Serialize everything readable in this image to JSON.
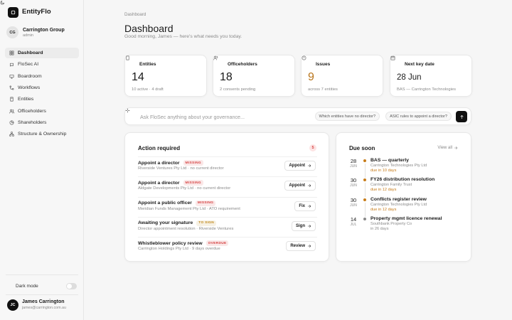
{
  "sidebar": {
    "brand": "EntityFlo",
    "org": {
      "initials": "CG",
      "name": "Carrington Group",
      "role": "admin"
    },
    "nav": [
      "Dashboard",
      "FloSec AI",
      "Boardroom",
      "Workflows",
      "Entities",
      "Officeholders",
      "Shareholders",
      "Structure & Ownership"
    ],
    "dark_mode": "Dark mode",
    "user": {
      "initials": "JC",
      "name": "James Carrington",
      "email": "james@carrington.com.au"
    }
  },
  "main": {
    "breadcrumb": "Dashboard",
    "title": "Dashboard",
    "greeting": "Good morning, James — here's what needs you today.",
    "stats": [
      {
        "label": "Entities",
        "value": "14",
        "note": "10 active · 4 draft",
        "color": "#1a1a1a"
      },
      {
        "label": "Officeholders",
        "value": "18",
        "note": "2 consents pending",
        "color": "#1a1a1a"
      },
      {
        "label": "Issues",
        "value": "9",
        "note": "across 7 entities",
        "color": "#b8741a"
      },
      {
        "label": "Next key date",
        "value": "28 Jun",
        "note": "BAS — Carrington Technologies",
        "color": "#1a1a1a"
      }
    ],
    "ask": {
      "placeholder": "Ask FloSec anything about your governance...",
      "suggestions": [
        "Which entities have no director?",
        "ASIC rules to appoint a director?"
      ]
    },
    "action_required": {
      "title": "Action required",
      "count": "5",
      "items": [
        {
          "title": "Appoint a director",
          "tag": "MISSING",
          "tag_color": "#d64545",
          "detail": "Riverside Ventures Pty Ltd · no current director",
          "action": "Appoint"
        },
        {
          "title": "Appoint a director",
          "tag": "MISSING",
          "tag_color": "#d64545",
          "detail": "Aldgate Developments Pty Ltd · no current director",
          "action": "Appoint"
        },
        {
          "title": "Appoint a public officer",
          "tag": "MISSING",
          "tag_color": "#d64545",
          "detail": "Meridian Funds Management Pty Ltd · ATO requirement",
          "action": "Fix"
        },
        {
          "title": "Awaiting your signature",
          "tag": "TO SIGN",
          "tag_color": "#c08a1e",
          "detail": "Director appointment resolution · Riverside Ventures",
          "action": "Sign"
        },
        {
          "title": "Whistleblower policy review",
          "tag": "OVERDUE",
          "tag_color": "#d64545",
          "detail": "Carrington Holdings Pty Ltd · 9 days overdue",
          "action": "Review"
        }
      ]
    },
    "due_soon": {
      "title": "Due soon",
      "view_all": "View all",
      "items": [
        {
          "day": "28",
          "month": "JUN",
          "title": "BAS — quarterly",
          "entity": "Carrington Technologies Pty Ltd",
          "due": "due in 10 days",
          "color": "#c77c1a"
        },
        {
          "day": "30",
          "month": "JUN",
          "title": "FY26 distribution resolution",
          "entity": "Carrington Family Trust",
          "due": "due in 12 days",
          "color": "#c77c1a"
        },
        {
          "day": "30",
          "month": "JUN",
          "title": "Conflicts register review",
          "entity": "Carrington Technologies Pty Ltd",
          "due": "due in 12 days",
          "color": "#c77c1a"
        },
        {
          "day": "14",
          "month": "JUL",
          "title": "Property mgmt licence renewal",
          "entity": "Southbank Property Co",
          "due": "in 26 days",
          "color": "#8a8a8a"
        }
      ]
    }
  }
}
